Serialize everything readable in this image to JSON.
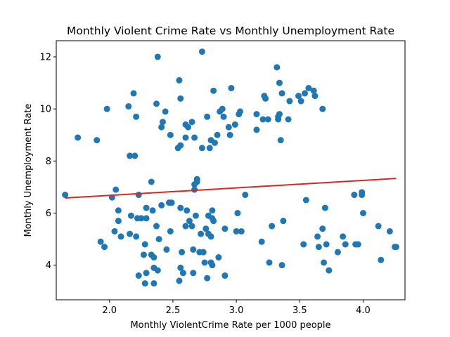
{
  "chart_data": {
    "type": "scatter",
    "title": "Monthly Violent Crime Rate vs Monthly Unemployment Rate",
    "xlabel": "Monthly ViolentCrime Rate per 1000 people",
    "ylabel": "Monthly Unemployment Rate",
    "xlim": [
      1.58,
      4.33
    ],
    "ylim": [
      2.67,
      12.62
    ],
    "xticks": [
      2.0,
      2.5,
      3.0,
      3.5,
      4.0
    ],
    "xtick_labels": [
      "2.0",
      "2.5",
      "3.0",
      "3.5",
      "4.0"
    ],
    "yticks": [
      4,
      6,
      8,
      10,
      12
    ],
    "ytick_labels": [
      "4",
      "6",
      "8",
      "10",
      "12"
    ],
    "grid": false,
    "colors": {
      "points": "#1f77b4",
      "trend_line": "#d62728"
    },
    "trend_line": {
      "x": [
        1.65,
        4.26
      ],
      "y": [
        6.58,
        7.33
      ]
    },
    "points": [
      [
        1.65,
        6.7
      ],
      [
        1.75,
        8.9
      ],
      [
        1.9,
        8.8
      ],
      [
        1.93,
        4.9
      ],
      [
        1.96,
        4.7
      ],
      [
        1.98,
        10.0
      ],
      [
        2.02,
        6.6
      ],
      [
        2.04,
        5.3
      ],
      [
        2.05,
        6.9
      ],
      [
        2.07,
        6.1
      ],
      [
        2.07,
        5.7
      ],
      [
        2.09,
        5.1
      ],
      [
        2.15,
        10.1
      ],
      [
        2.16,
        8.2
      ],
      [
        2.16,
        5.2
      ],
      [
        2.17,
        5.9
      ],
      [
        2.19,
        10.6
      ],
      [
        2.2,
        8.2
      ],
      [
        2.21,
        9.7
      ],
      [
        2.21,
        5.1
      ],
      [
        2.22,
        5.8
      ],
      [
        2.23,
        3.6
      ],
      [
        2.23,
        6.7
      ],
      [
        2.25,
        5.8
      ],
      [
        2.27,
        4.4
      ],
      [
        2.28,
        4.8
      ],
      [
        2.28,
        3.3
      ],
      [
        2.29,
        5.8
      ],
      [
        2.29,
        6.2
      ],
      [
        2.29,
        3.7
      ],
      [
        2.33,
        7.2
      ],
      [
        2.33,
        4.4
      ],
      [
        2.34,
        6.1
      ],
      [
        2.35,
        4.3
      ],
      [
        2.35,
        3.9
      ],
      [
        2.35,
        3.3
      ],
      [
        2.37,
        10.2
      ],
      [
        2.37,
        5.5
      ],
      [
        2.38,
        3.8
      ],
      [
        2.38,
        12.0
      ],
      [
        2.39,
        5.0
      ],
      [
        2.41,
        6.3
      ],
      [
        2.41,
        9.3
      ],
      [
        2.42,
        9.5
      ],
      [
        2.44,
        9.9
      ],
      [
        2.45,
        4.6
      ],
      [
        2.47,
        6.4
      ],
      [
        2.48,
        9.0
      ],
      [
        2.48,
        5.3
      ],
      [
        2.49,
        6.4
      ],
      [
        2.54,
        8.5
      ],
      [
        2.55,
        11.1
      ],
      [
        2.55,
        3.4
      ],
      [
        2.56,
        8.6
      ],
      [
        2.56,
        10.4
      ],
      [
        2.56,
        6.2
      ],
      [
        2.56,
        3.9
      ],
      [
        2.57,
        4.5
      ],
      [
        2.58,
        3.7
      ],
      [
        2.6,
        9.4
      ],
      [
        2.6,
        5.5
      ],
      [
        2.6,
        8.9
      ],
      [
        2.61,
        6.1
      ],
      [
        2.62,
        9.3
      ],
      [
        2.63,
        5.7
      ],
      [
        2.65,
        9.5
      ],
      [
        2.65,
        5.5
      ],
      [
        2.66,
        3.7
      ],
      [
        2.66,
        4.6
      ],
      [
        2.67,
        7.1
      ],
      [
        2.67,
        6.9
      ],
      [
        2.67,
        8.9
      ],
      [
        2.68,
        5.9
      ],
      [
        2.69,
        7.3
      ],
      [
        2.69,
        7.2
      ],
      [
        2.71,
        4.5
      ],
      [
        2.72,
        5.2
      ],
      [
        2.73,
        12.2
      ],
      [
        2.73,
        8.5
      ],
      [
        2.74,
        4.5
      ],
      [
        2.75,
        4.1
      ],
      [
        2.76,
        5.4
      ],
      [
        2.77,
        9.7
      ],
      [
        2.77,
        3.5
      ],
      [
        2.78,
        5.9
      ],
      [
        2.78,
        5.2
      ],
      [
        2.79,
        8.5
      ],
      [
        2.8,
        4.1
      ],
      [
        2.8,
        5.1
      ],
      [
        2.8,
        8.8
      ],
      [
        2.81,
        6.1
      ],
      [
        2.81,
        5.8
      ],
      [
        2.81,
        4.0
      ],
      [
        2.82,
        10.7
      ],
      [
        2.82,
        5.7
      ],
      [
        2.83,
        8.7
      ],
      [
        2.85,
        9.0
      ],
      [
        2.86,
        4.3
      ],
      [
        2.87,
        9.9
      ],
      [
        2.89,
        10.0
      ],
      [
        2.9,
        9.7
      ],
      [
        2.91,
        3.6
      ],
      [
        2.91,
        5.4
      ],
      [
        2.94,
        9.3
      ],
      [
        2.95,
        9.0
      ],
      [
        2.96,
        10.8
      ],
      [
        2.99,
        9.4
      ],
      [
        3.0,
        5.3
      ],
      [
        3.01,
        6.0
      ],
      [
        3.02,
        9.8
      ],
      [
        3.03,
        9.9
      ],
      [
        3.04,
        5.3
      ],
      [
        3.07,
        6.7
      ],
      [
        3.16,
        9.2
      ],
      [
        3.16,
        9.8
      ],
      [
        3.2,
        4.9
      ],
      [
        3.21,
        9.6
      ],
      [
        3.22,
        10.5
      ],
      [
        3.23,
        10.4
      ],
      [
        3.25,
        9.6
      ],
      [
        3.26,
        4.1
      ],
      [
        3.28,
        5.5
      ],
      [
        3.32,
        11.6
      ],
      [
        3.33,
        9.6
      ],
      [
        3.33,
        9.7
      ],
      [
        3.34,
        11.0
      ],
      [
        3.34,
        9.8
      ],
      [
        3.35,
        8.8
      ],
      [
        3.36,
        10.6
      ],
      [
        3.36,
        4.0
      ],
      [
        3.37,
        5.7
      ],
      [
        3.41,
        9.6
      ],
      [
        3.42,
        10.3
      ],
      [
        3.49,
        10.5
      ],
      [
        3.51,
        10.3
      ],
      [
        3.53,
        4.8
      ],
      [
        3.54,
        10.6
      ],
      [
        3.55,
        6.5
      ],
      [
        3.57,
        10.8
      ],
      [
        3.61,
        10.7
      ],
      [
        3.62,
        10.5
      ],
      [
        3.64,
        5.1
      ],
      [
        3.65,
        4.7
      ],
      [
        3.68,
        10.0
      ],
      [
        3.68,
        5.4
      ],
      [
        3.69,
        4.1
      ],
      [
        3.7,
        6.2
      ],
      [
        3.71,
        4.8
      ],
      [
        3.73,
        3.8
      ],
      [
        3.8,
        4.5
      ],
      [
        3.84,
        5.1
      ],
      [
        3.86,
        4.8
      ],
      [
        3.93,
        6.7
      ],
      [
        3.94,
        4.8
      ],
      [
        3.96,
        4.8
      ],
      [
        3.99,
        6.7
      ],
      [
        3.99,
        6.8
      ],
      [
        4.0,
        6.0
      ],
      [
        4.12,
        5.5
      ],
      [
        4.14,
        4.2
      ],
      [
        4.21,
        5.3
      ],
      [
        4.25,
        4.7
      ],
      [
        4.26,
        4.7
      ]
    ]
  }
}
